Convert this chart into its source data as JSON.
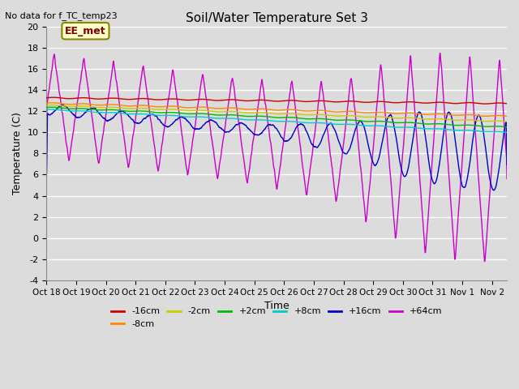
{
  "title": "Soil/Water Temperature Set 3",
  "xlabel": "Time",
  "ylabel": "Temperature (C)",
  "no_data_text": "No data for f_TC_temp23",
  "annotation_text": "EE_met",
  "ylim": [
    -4,
    20
  ],
  "xlim": [
    0,
    15.5
  ],
  "yticks": [
    -4,
    -2,
    0,
    2,
    4,
    6,
    8,
    10,
    12,
    14,
    16,
    18,
    20
  ],
  "xtick_labels": [
    "Oct 18",
    "Oct 19",
    "Oct 20",
    "Oct 21",
    "Oct 22",
    "Oct 23",
    "Oct 24",
    "Oct 25",
    "Oct 26",
    "Oct 27",
    "Oct 28",
    "Oct 29",
    "Oct 30",
    "Oct 31",
    "Nov 1",
    "Nov 2"
  ],
  "bg_color": "#dcdcdc",
  "series_colors": {
    "-16cm": "#cc0000",
    "-8cm": "#ff8800",
    "-2cm": "#cccc00",
    "+2cm": "#00bb00",
    "+8cm": "#00cccc",
    "+16cm": "#0000cc",
    "+64cm": "#cc00cc"
  },
  "legend_order": [
    "-16cm",
    "-8cm",
    "-2cm",
    "+2cm",
    "+8cm",
    "+16cm",
    "+64cm"
  ]
}
